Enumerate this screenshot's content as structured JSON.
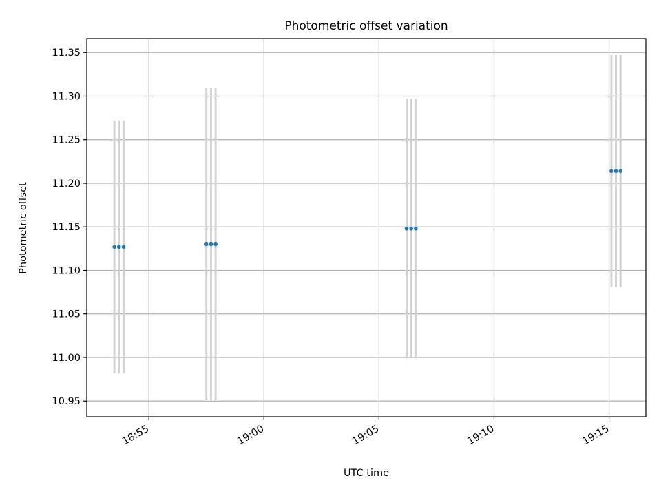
{
  "chart_data": {
    "type": "scatter",
    "title": "Photometric offset variation",
    "xlabel": "UTC time",
    "ylabel": "Photometric offset",
    "grid": true,
    "colors": {
      "points": "#1f77b4",
      "errorbars": "#d3d3d3",
      "grid": "#b0b0b0"
    },
    "xlim": [
      "18:52:18",
      "19:16:36"
    ],
    "ylim": [
      10.932,
      11.366
    ],
    "x_ticks": [
      "18:55",
      "19:00",
      "19:05",
      "19:10",
      "19:15"
    ],
    "y_ticks": [
      "10.95",
      "11.00",
      "11.05",
      "11.10",
      "11.15",
      "11.20",
      "11.25",
      "11.30",
      "11.35"
    ],
    "series": [
      {
        "points": [
          {
            "x": "18:53:30",
            "y": 11.127,
            "err": 0.145
          },
          {
            "x": "18:53:42",
            "y": 11.127,
            "err": 0.145
          },
          {
            "x": "18:53:54",
            "y": 11.127,
            "err": 0.145
          },
          {
            "x": "18:57:30",
            "y": 11.13,
            "err": 0.179
          },
          {
            "x": "18:57:42",
            "y": 11.13,
            "err": 0.179
          },
          {
            "x": "18:57:54",
            "y": 11.13,
            "err": 0.179
          },
          {
            "x": "19:06:12",
            "y": 11.148,
            "err": 0.149
          },
          {
            "x": "19:06:24",
            "y": 11.148,
            "err": 0.149
          },
          {
            "x": "19:06:36",
            "y": 11.148,
            "err": 0.149
          },
          {
            "x": "19:15:06",
            "y": 11.214,
            "err": 0.133
          },
          {
            "x": "19:15:18",
            "y": 11.214,
            "err": 0.133
          },
          {
            "x": "19:15:30",
            "y": 11.214,
            "err": 0.133
          }
        ]
      }
    ]
  }
}
